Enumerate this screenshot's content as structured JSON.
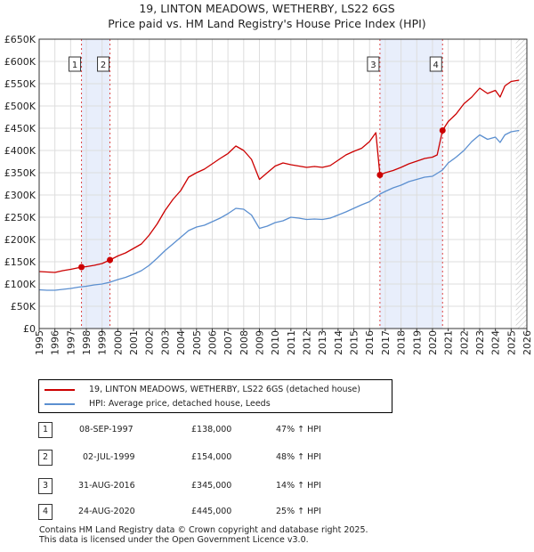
{
  "chart_data": {
    "type": "line",
    "title": "19, LINTON MEADOWS, WETHERBY, LS22 6GS",
    "subtitle": "Price paid vs. HM Land Registry's House Price Index (HPI)",
    "xlim": [
      1995,
      2026
    ],
    "ylim": [
      0,
      650000
    ],
    "y_ticks": [
      0,
      50000,
      100000,
      150000,
      200000,
      250000,
      300000,
      350000,
      400000,
      450000,
      500000,
      550000,
      600000,
      650000
    ],
    "y_tick_labels": [
      "£0",
      "£50K",
      "£100K",
      "£150K",
      "£200K",
      "£250K",
      "£300K",
      "£350K",
      "£400K",
      "£450K",
      "£500K",
      "£550K",
      "£600K",
      "£650K"
    ],
    "x_ticks": [
      "1995",
      "1996",
      "1997",
      "1998",
      "1999",
      "2000",
      "2001",
      "2002",
      "2003",
      "2004",
      "2005",
      "2006",
      "2007",
      "2008",
      "2009",
      "2010",
      "2011",
      "2012",
      "2013",
      "2014",
      "2015",
      "2016",
      "2017",
      "2018",
      "2019",
      "2020",
      "2021",
      "2022",
      "2023",
      "2024",
      "2025",
      "2026"
    ],
    "grid": true,
    "series": [
      {
        "name": "19, LINTON MEADOWS, WETHERBY, LS22 6GS (detached house)",
        "color": "#cc0000",
        "points": [
          [
            1995,
            128000
          ],
          [
            1995.5,
            127000
          ],
          [
            1996,
            126000
          ],
          [
            1996.5,
            130000
          ],
          [
            1997,
            133000
          ],
          [
            1997.69,
            138000
          ],
          [
            1998,
            139000
          ],
          [
            1998.5,
            142000
          ],
          [
            1999,
            146000
          ],
          [
            1999.5,
            154000
          ],
          [
            2000,
            163000
          ],
          [
            2000.5,
            170000
          ],
          [
            2001,
            180000
          ],
          [
            2001.5,
            190000
          ],
          [
            2002,
            210000
          ],
          [
            2002.5,
            235000
          ],
          [
            2003,
            265000
          ],
          [
            2003.5,
            290000
          ],
          [
            2004,
            310000
          ],
          [
            2004.5,
            340000
          ],
          [
            2005,
            350000
          ],
          [
            2005.5,
            358000
          ],
          [
            2006,
            370000
          ],
          [
            2006.5,
            382000
          ],
          [
            2007,
            393000
          ],
          [
            2007.5,
            410000
          ],
          [
            2008,
            400000
          ],
          [
            2008.5,
            380000
          ],
          [
            2009,
            335000
          ],
          [
            2009.5,
            350000
          ],
          [
            2010,
            365000
          ],
          [
            2010.5,
            372000
          ],
          [
            2011,
            368000
          ],
          [
            2011.5,
            365000
          ],
          [
            2012,
            362000
          ],
          [
            2012.5,
            364000
          ],
          [
            2013,
            362000
          ],
          [
            2013.5,
            366000
          ],
          [
            2014,
            378000
          ],
          [
            2014.5,
            390000
          ],
          [
            2015,
            398000
          ],
          [
            2015.5,
            405000
          ],
          [
            2016,
            420000
          ],
          [
            2016.4,
            440000
          ],
          [
            2016.66,
            345000
          ],
          [
            2017,
            350000
          ],
          [
            2017.5,
            355000
          ],
          [
            2018,
            362000
          ],
          [
            2018.5,
            370000
          ],
          [
            2019,
            376000
          ],
          [
            2019.5,
            382000
          ],
          [
            2020,
            385000
          ],
          [
            2020.3,
            390000
          ],
          [
            2020.64,
            445000
          ],
          [
            2021,
            465000
          ],
          [
            2021.5,
            482000
          ],
          [
            2022,
            505000
          ],
          [
            2022.5,
            520000
          ],
          [
            2023,
            540000
          ],
          [
            2023.5,
            528000
          ],
          [
            2024,
            535000
          ],
          [
            2024.3,
            520000
          ],
          [
            2024.6,
            545000
          ],
          [
            2025,
            555000
          ],
          [
            2025.5,
            558000
          ]
        ]
      },
      {
        "name": "HPI: Average price, detached house, Leeds",
        "color": "#5b8fd0",
        "points": [
          [
            1995,
            87000
          ],
          [
            1995.5,
            86000
          ],
          [
            1996,
            86000
          ],
          [
            1996.5,
            88000
          ],
          [
            1997,
            90000
          ],
          [
            1997.5,
            93000
          ],
          [
            1998,
            95000
          ],
          [
            1998.5,
            98000
          ],
          [
            1999,
            100000
          ],
          [
            1999.5,
            104000
          ],
          [
            2000,
            110000
          ],
          [
            2000.5,
            115000
          ],
          [
            2001,
            122000
          ],
          [
            2001.5,
            130000
          ],
          [
            2002,
            142000
          ],
          [
            2002.5,
            158000
          ],
          [
            2003,
            175000
          ],
          [
            2003.5,
            190000
          ],
          [
            2004,
            205000
          ],
          [
            2004.5,
            220000
          ],
          [
            2005,
            228000
          ],
          [
            2005.5,
            232000
          ],
          [
            2006,
            240000
          ],
          [
            2006.5,
            248000
          ],
          [
            2007,
            258000
          ],
          [
            2007.5,
            270000
          ],
          [
            2008,
            268000
          ],
          [
            2008.5,
            255000
          ],
          [
            2009,
            225000
          ],
          [
            2009.5,
            230000
          ],
          [
            2010,
            238000
          ],
          [
            2010.5,
            242000
          ],
          [
            2011,
            250000
          ],
          [
            2011.5,
            248000
          ],
          [
            2012,
            245000
          ],
          [
            2012.5,
            246000
          ],
          [
            2013,
            245000
          ],
          [
            2013.5,
            248000
          ],
          [
            2014,
            255000
          ],
          [
            2014.5,
            262000
          ],
          [
            2015,
            270000
          ],
          [
            2015.5,
            278000
          ],
          [
            2016,
            285000
          ],
          [
            2016.66,
            302000
          ],
          [
            2017,
            308000
          ],
          [
            2017.5,
            316000
          ],
          [
            2018,
            322000
          ],
          [
            2018.5,
            330000
          ],
          [
            2019,
            335000
          ],
          [
            2019.5,
            340000
          ],
          [
            2020,
            342000
          ],
          [
            2020.64,
            356000
          ],
          [
            2021,
            372000
          ],
          [
            2021.5,
            385000
          ],
          [
            2022,
            400000
          ],
          [
            2022.5,
            420000
          ],
          [
            2023,
            435000
          ],
          [
            2023.5,
            425000
          ],
          [
            2024,
            430000
          ],
          [
            2024.3,
            418000
          ],
          [
            2024.6,
            435000
          ],
          [
            2025,
            442000
          ],
          [
            2025.5,
            445000
          ]
        ]
      }
    ],
    "bands": [
      [
        1997.69,
        1999.5
      ],
      [
        2016.66,
        2020.64
      ]
    ],
    "band_color": "#e8eefb",
    "future_hatch_from": 2025.3,
    "markers": [
      {
        "label": "1",
        "x": 1997.69,
        "y": 138000
      },
      {
        "label": "2",
        "x": 1999.5,
        "y": 154000
      },
      {
        "label": "3",
        "x": 2016.66,
        "y": 345000
      },
      {
        "label": "4",
        "x": 2020.64,
        "y": 445000
      }
    ]
  },
  "legend": {
    "property_label": "19, LINTON MEADOWS, WETHERBY, LS22 6GS (detached house)",
    "hpi_label": "HPI: Average price, detached house, Leeds"
  },
  "sales": [
    {
      "num": "1",
      "date": "08-SEP-1997",
      "price": "£138,000",
      "hpi": "47% ↑ HPI"
    },
    {
      "num": "2",
      "date": "02-JUL-1999",
      "price": "£154,000",
      "hpi": "48% ↑ HPI"
    },
    {
      "num": "3",
      "date": "31-AUG-2016",
      "price": "£345,000",
      "hpi": "14% ↑ HPI"
    },
    {
      "num": "4",
      "date": "24-AUG-2020",
      "price": "£445,000",
      "hpi": "25% ↑ HPI"
    }
  ],
  "footer": {
    "line1": "Contains HM Land Registry data © Crown copyright and database right 2025.",
    "line2": "This data is licensed under the Open Government Licence v3.0."
  }
}
